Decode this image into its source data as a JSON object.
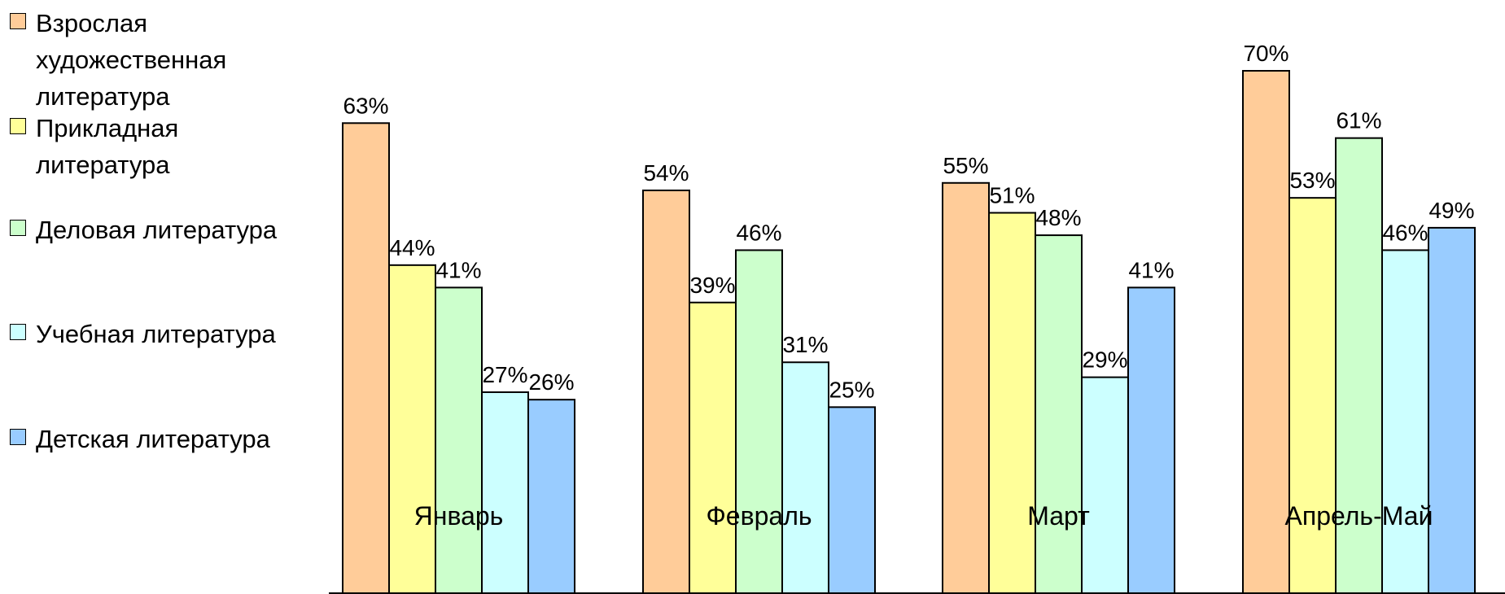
{
  "chart_data": {
    "type": "bar",
    "categories": [
      "Январь",
      "Февраль",
      "Март",
      "Апрель-Май"
    ],
    "series": [
      {
        "name": "Взрослая художественная литература",
        "values": [
          63,
          54,
          55,
          70
        ],
        "color": "#FFCC99"
      },
      {
        "name": "Прикладная литература",
        "values": [
          44,
          39,
          51,
          53
        ],
        "color": "#FFFF99"
      },
      {
        "name": "Деловая литература",
        "values": [
          41,
          46,
          48,
          61
        ],
        "color": "#CCFFCC"
      },
      {
        "name": "Учебная литература",
        "values": [
          27,
          31,
          29,
          46
        ],
        "color": "#CCFFFF"
      },
      {
        "name": "Детская литература",
        "values": [
          26,
          25,
          41,
          49
        ],
        "color": "#99CCFF"
      }
    ],
    "data_labels": [
      [
        "63%",
        "54%",
        "55%",
        "70%"
      ],
      [
        "44%",
        "39%",
        "51%",
        "53%"
      ],
      [
        "41%",
        "46%",
        "48%",
        "61%"
      ],
      [
        "27%",
        "31%",
        "29%",
        "46%"
      ],
      [
        "26%",
        "25%",
        "41%",
        "49%"
      ]
    ],
    "ylim": [
      0,
      70
    ],
    "grid": false,
    "legend_position": "left"
  }
}
